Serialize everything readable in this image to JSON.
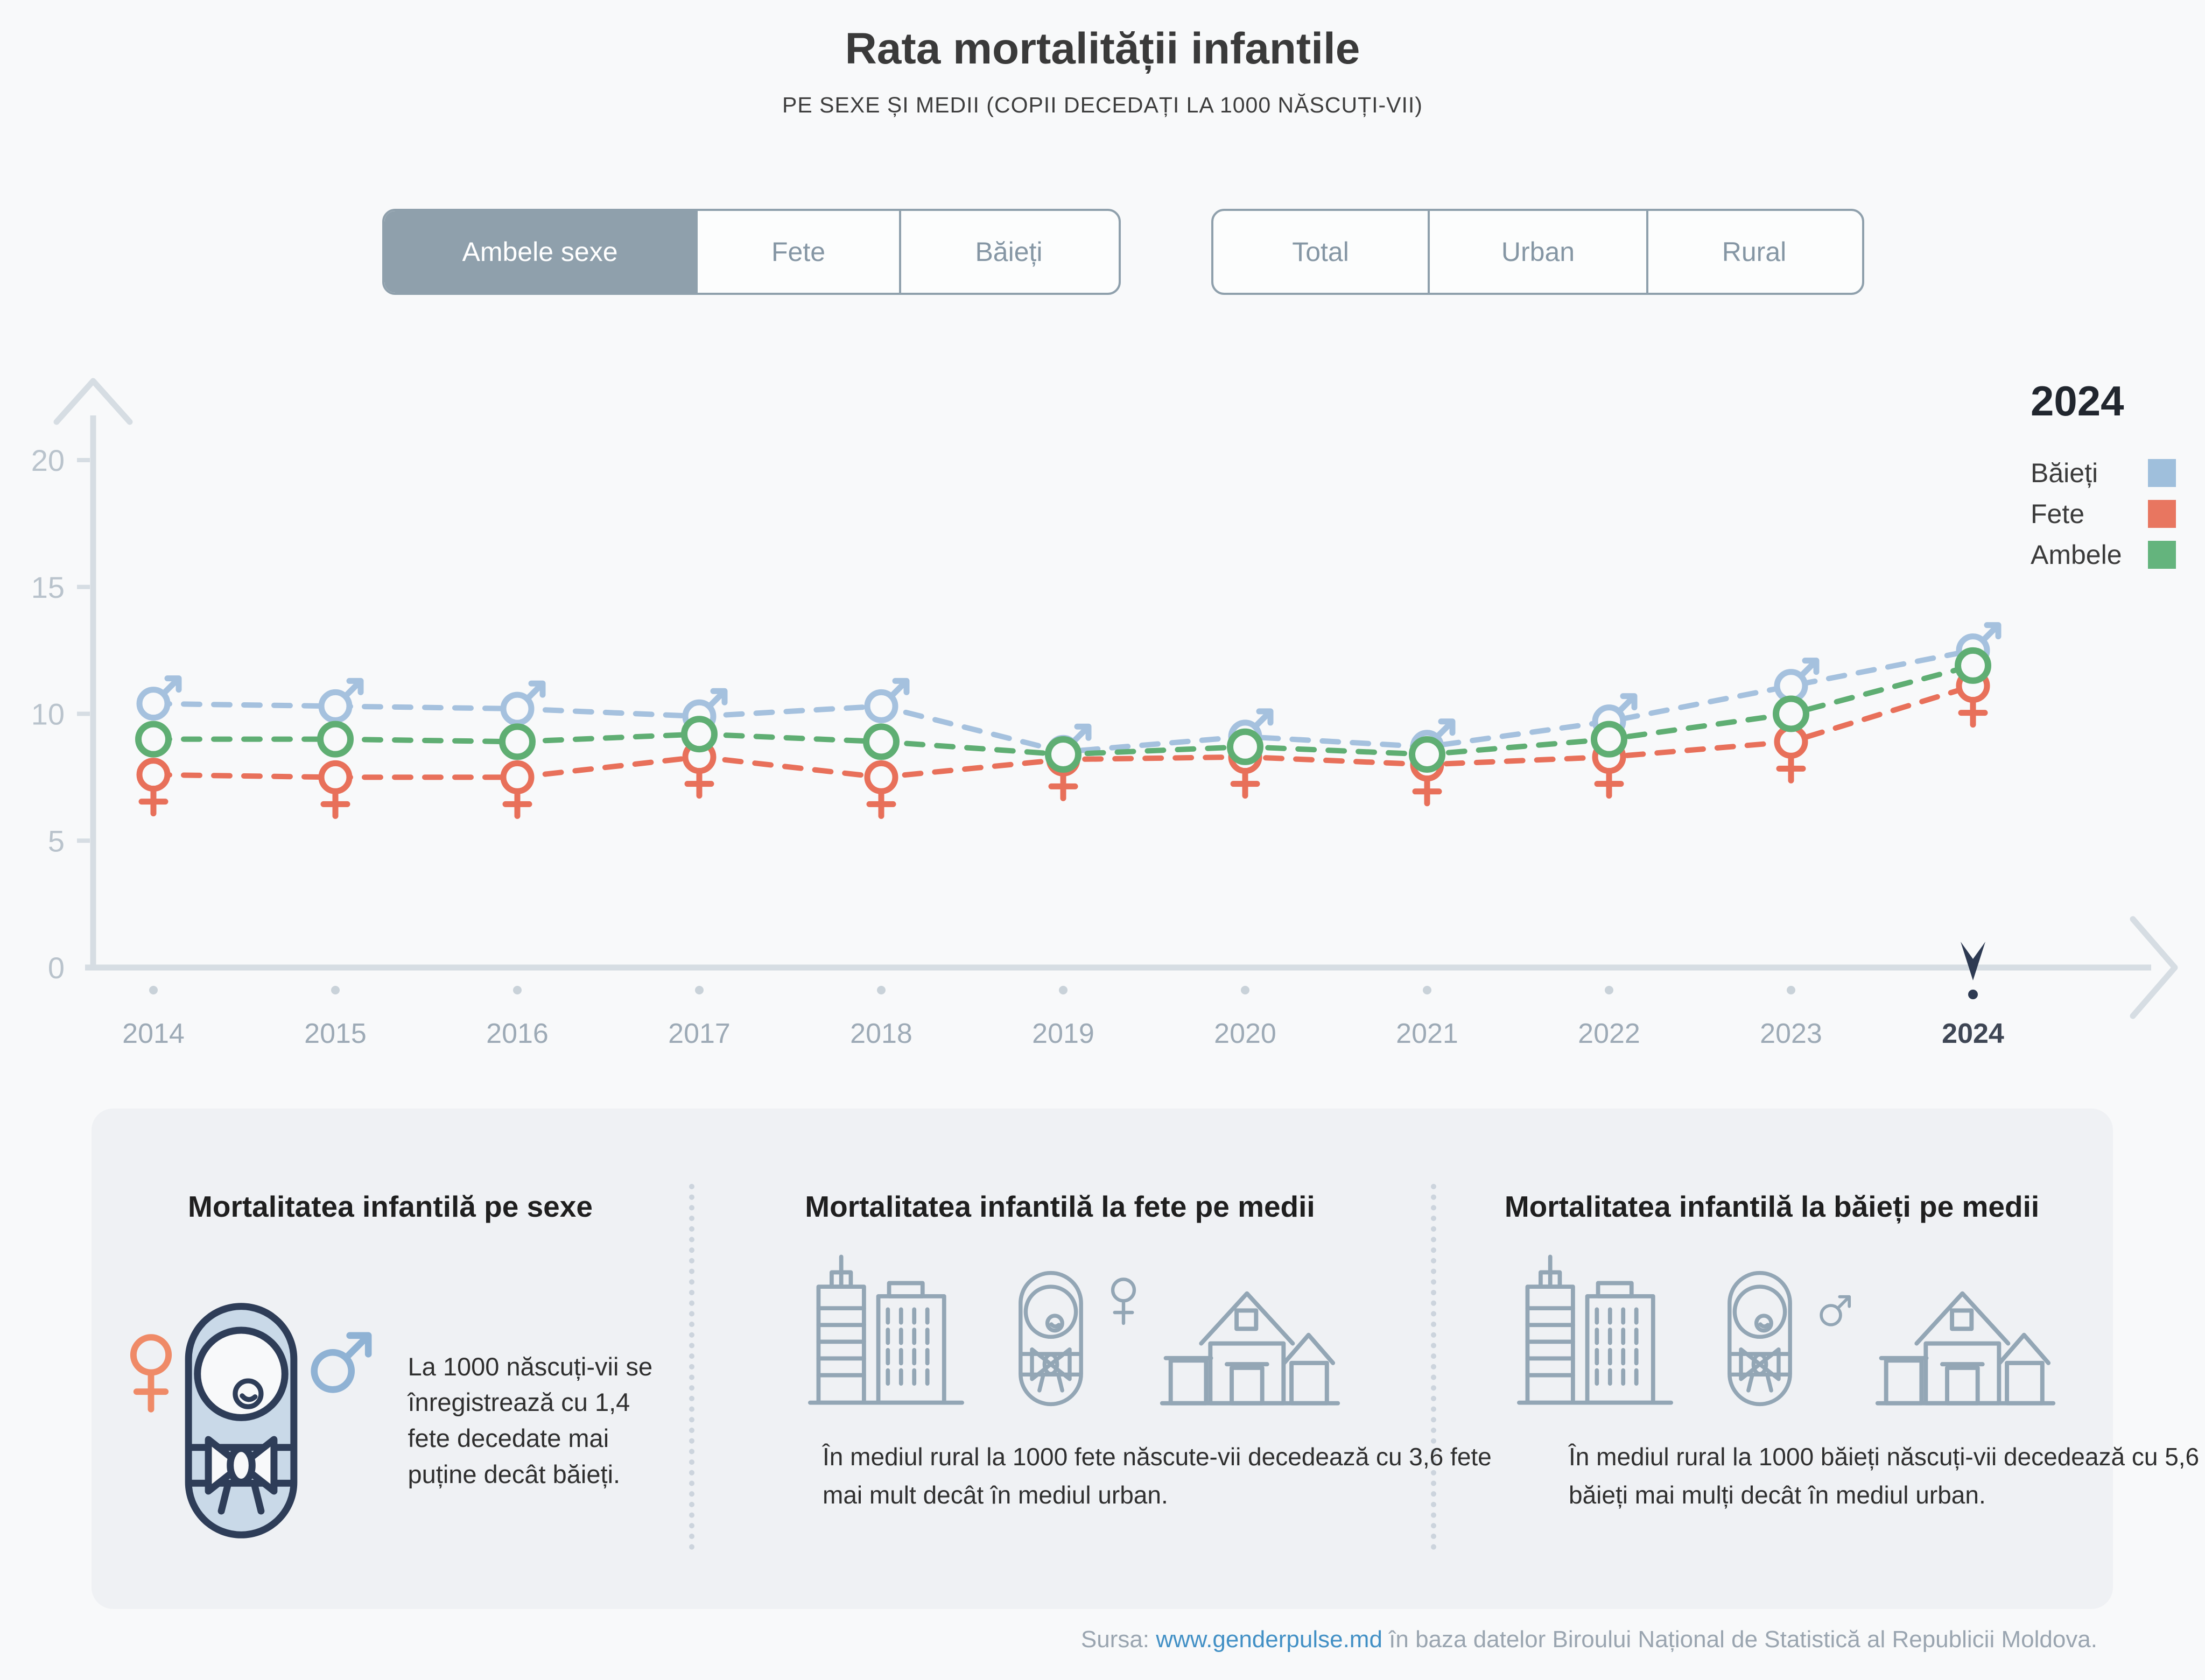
{
  "page": {
    "title": "Rata mortalității infantile",
    "subtitle": "PE SEXE ȘI MEDII (COPII DECEDAȚI LA 1000 NĂSCUȚI-VII)",
    "source_prefix": "Sursa:",
    "source_link": "www.genderpulse.md",
    "source_suffix": "în baza datelor Biroului Național de Statistică al Republicii Moldova."
  },
  "filters": {
    "sex": {
      "options": [
        {
          "label": "Ambele sexe",
          "selected": true
        },
        {
          "label": "Fete",
          "selected": false
        },
        {
          "label": "Băieți",
          "selected": false
        }
      ]
    },
    "mediu": {
      "options": [
        {
          "label": "Total",
          "selected": false
        },
        {
          "label": "Urban",
          "selected": false
        },
        {
          "label": "Rural",
          "selected": false
        }
      ]
    }
  },
  "legend": {
    "year": "2024",
    "items": [
      {
        "label": "Băieți",
        "color": "#9fbfdc"
      },
      {
        "label": "Fete",
        "color": "#e87660"
      },
      {
        "label": "Ambele",
        "color": "#64b47d"
      }
    ]
  },
  "chart_data": {
    "type": "line",
    "title": "Rata mortalității infantile",
    "subtitle": "PE SEXE ȘI MEDII (COPII DECEDAȚI LA 1000 NĂSCUȚI-VII)",
    "x": [
      2014,
      2015,
      2016,
      2017,
      2018,
      2019,
      2020,
      2021,
      2022,
      2023,
      2024
    ],
    "xlabel": "",
    "ylabel": "",
    "ylim": [
      0,
      20
    ],
    "yticks": [
      0,
      5,
      10,
      15,
      20
    ],
    "grid": false,
    "legend_position": "top-right",
    "selected_year": 2024,
    "line_style": "dashed",
    "series": [
      {
        "name": "Băieți",
        "marker": "male",
        "color": "#a5c1de",
        "values": [
          10.4,
          10.3,
          10.2,
          9.9,
          10.3,
          8.5,
          9.1,
          8.7,
          9.7,
          11.1,
          12.5
        ]
      },
      {
        "name": "Fete",
        "marker": "female",
        "color": "#e8705a",
        "values": [
          7.6,
          7.5,
          7.5,
          8.3,
          7.5,
          8.2,
          8.3,
          8.0,
          8.3,
          8.9,
          11.1
        ]
      },
      {
        "name": "Ambele",
        "marker": "circle",
        "color": "#5fae73",
        "values": [
          9.0,
          9.0,
          8.9,
          9.2,
          8.9,
          8.4,
          8.7,
          8.4,
          9.0,
          10.0,
          11.9
        ]
      }
    ]
  },
  "cards": [
    {
      "title": "Mortalitatea infantilă pe sexe",
      "text": "La 1000 născuți-vii se înregistrează cu 1,4 fete decedate mai puține decât băieți."
    },
    {
      "title": "Mortalitatea infantilă la fete pe medii",
      "text": "În mediul rural la 1000 fete născute-vii decedează cu 3,6 fete mai mult decât în mediul urban."
    },
    {
      "title": "Mortalitatea infantilă la băieți pe medii",
      "text": "În mediul rural la 1000 băieți născuți-vii decedează cu 5,6 băieți mai mulți decât în mediul urban."
    }
  ]
}
